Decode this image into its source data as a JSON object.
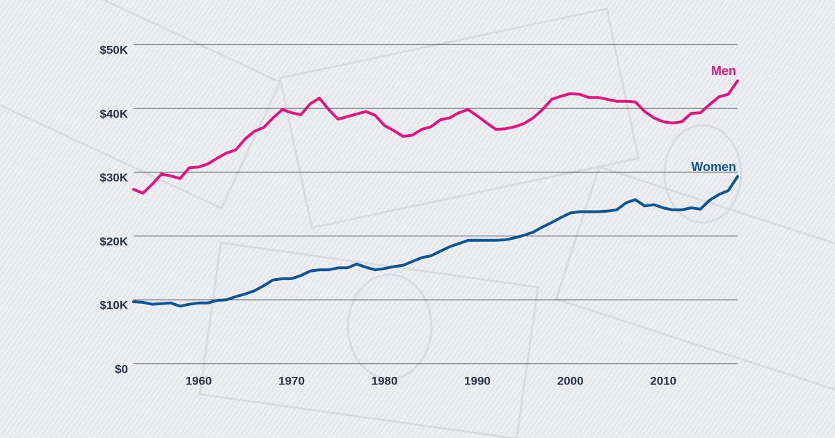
{
  "chart_data": {
    "type": "line",
    "x": [
      1953,
      1954,
      1955,
      1956,
      1957,
      1958,
      1959,
      1960,
      1961,
      1962,
      1963,
      1964,
      1965,
      1966,
      1967,
      1968,
      1969,
      1970,
      1971,
      1972,
      1973,
      1974,
      1975,
      1976,
      1977,
      1978,
      1979,
      1980,
      1981,
      1982,
      1983,
      1984,
      1985,
      1986,
      1987,
      1988,
      1989,
      1990,
      1991,
      1992,
      1993,
      1994,
      1995,
      1996,
      1997,
      1998,
      1999,
      2000,
      2001,
      2002,
      2003,
      2004,
      2005,
      2006,
      2007,
      2008,
      2009,
      2010,
      2011,
      2012,
      2013,
      2014,
      2015,
      2016,
      2017,
      2018
    ],
    "series": [
      {
        "name": "Men",
        "color": "#e0157f",
        "values": [
          27300,
          26700,
          28100,
          29700,
          29400,
          29000,
          30700,
          30800,
          31300,
          32200,
          33000,
          33500,
          35200,
          36400,
          37000,
          38500,
          39800,
          39300,
          39000,
          40700,
          41600,
          39800,
          38300,
          38700,
          39100,
          39500,
          38900,
          37300,
          36500,
          35600,
          35800,
          36700,
          37100,
          38200,
          38500,
          39300,
          39800,
          38800,
          37700,
          36700,
          36800,
          37100,
          37600,
          38500,
          39800,
          41400,
          41900,
          42300,
          42200,
          41700,
          41700,
          41400,
          41100,
          41100,
          41000,
          39500,
          38500,
          37900,
          37700,
          37900,
          39200,
          39300,
          40600,
          41800,
          42200,
          44300
        ]
      },
      {
        "name": "Women",
        "color": "#0d5594",
        "values": [
          9700,
          9600,
          9300,
          9400,
          9500,
          9000,
          9300,
          9500,
          9500,
          9900,
          10000,
          10500,
          10900,
          11400,
          12200,
          13100,
          13300,
          13300,
          13800,
          14500,
          14700,
          14700,
          15000,
          15000,
          15600,
          15100,
          14700,
          14900,
          15200,
          15400,
          16000,
          16600,
          16900,
          17600,
          18300,
          18800,
          19300,
          19300,
          19300,
          19300,
          19400,
          19700,
          20100,
          20600,
          21400,
          22100,
          22900,
          23600,
          23800,
          23800,
          23800,
          23900,
          24100,
          25200,
          25700,
          24700,
          24900,
          24400,
          24100,
          24100,
          24400,
          24200,
          25600,
          26500,
          27100,
          29300
        ]
      }
    ],
    "xlim": [
      1953,
      2018
    ],
    "xticks": [
      1960,
      1970,
      1980,
      1990,
      2000,
      2010
    ],
    "ylim": [
      0,
      50000
    ],
    "yticks": [
      {
        "value": 0,
        "label": "$0"
      },
      {
        "value": 10000,
        "label": "$10K"
      },
      {
        "value": 20000,
        "label": "$20K"
      },
      {
        "value": 30000,
        "label": "$30K"
      },
      {
        "value": 40000,
        "label": "$40K"
      },
      {
        "value": 50000,
        "label": "$50K"
      }
    ],
    "grid": true
  }
}
